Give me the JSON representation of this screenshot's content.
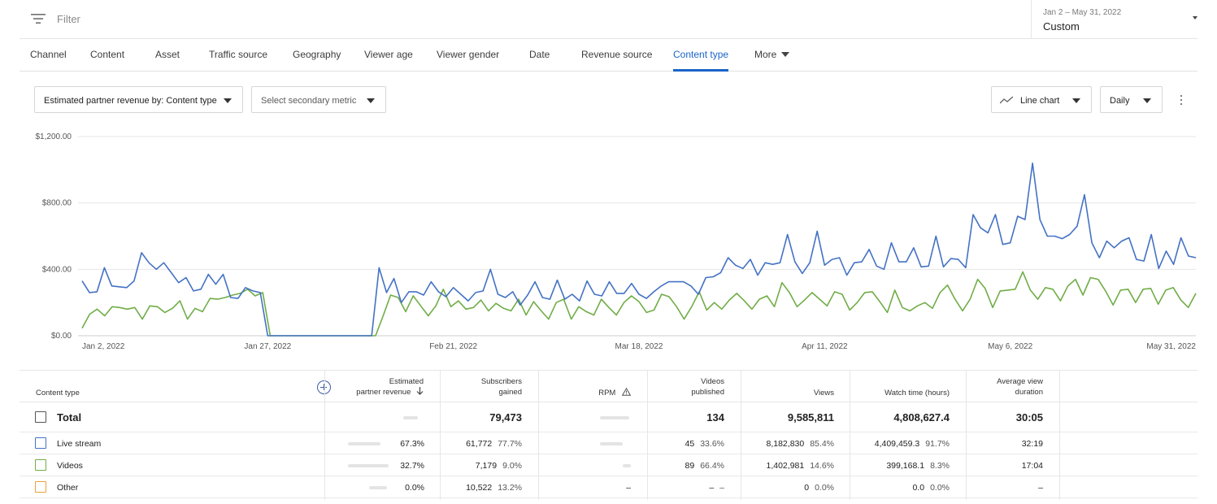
{
  "filter": {
    "label": "Filter"
  },
  "date_range": {
    "range": "Jan 2 – May 31, 2022",
    "preset": "Custom"
  },
  "tabs": [
    "Channel",
    "Content",
    "Asset",
    "Traffic source",
    "Geography",
    "Viewer age",
    "Viewer gender",
    "Date",
    "Revenue source",
    "Content type",
    "More"
  ],
  "active_tab": "Content type",
  "controls": {
    "primary_metric": "Estimated partner revenue by: Content type",
    "secondary_metric": "Select secondary metric",
    "chart_type": "Line chart",
    "granularity": "Daily"
  },
  "colors": {
    "accent": "#1a64c8",
    "live_stream": "#4472c4",
    "videos": "#70ad47",
    "other": "#e8a33d"
  },
  "chart_data": {
    "type": "line",
    "y_ticks": [
      "$0.00",
      "$400.00",
      "$800.00",
      "$1,200.00"
    ],
    "ylim": [
      0,
      1200
    ],
    "x_ticks": [
      "Jan 2, 2022",
      "Jan 27, 2022",
      "Feb 21, 2022",
      "Mar 18, 2022",
      "Apr 11, 2022",
      "May 6, 2022",
      "May 31, 2022"
    ],
    "grid": true,
    "series": [
      {
        "name": "Live stream",
        "color": "#4472c4",
        "values": [
          330,
          260,
          265,
          410,
          300,
          295,
          290,
          330,
          500,
          440,
          400,
          440,
          380,
          320,
          350,
          270,
          280,
          370,
          310,
          370,
          230,
          225,
          290,
          270,
          260,
          0,
          0,
          0,
          0,
          0,
          0,
          0,
          0,
          0,
          0,
          0,
          0,
          0,
          0,
          0,
          410,
          260,
          345,
          200,
          265,
          265,
          245,
          325,
          265,
          235,
          290,
          250,
          210,
          260,
          270,
          400,
          250,
          230,
          265,
          185,
          245,
          325,
          230,
          220,
          335,
          220,
          250,
          210,
          330,
          250,
          240,
          325,
          255,
          255,
          315,
          250,
          225,
          265,
          300,
          325,
          325,
          325,
          300,
          250,
          350,
          355,
          380,
          470,
          425,
          405,
          460,
          365,
          440,
          430,
          440,
          610,
          445,
          375,
          440,
          630,
          425,
          460,
          470,
          365,
          440,
          445,
          520,
          420,
          400,
          560,
          445,
          445,
          530,
          415,
          420,
          600,
          415,
          465,
          460,
          410,
          730,
          650,
          620,
          730,
          550,
          560,
          720,
          700,
          1040,
          700,
          600,
          600,
          585,
          610,
          660,
          850,
          560,
          470,
          570,
          530,
          570,
          590,
          460,
          450,
          610,
          405,
          510,
          430,
          590,
          480,
          470
        ],
        "note": "approximate daily values read from chart"
      },
      {
        "name": "Videos",
        "color": "#70ad47",
        "values": [
          45,
          130,
          160,
          120,
          175,
          170,
          160,
          170,
          100,
          180,
          175,
          140,
          165,
          210,
          100,
          165,
          145,
          225,
          220,
          230,
          245,
          255,
          280,
          240,
          260,
          0,
          0,
          0,
          0,
          0,
          0,
          0,
          0,
          0,
          0,
          0,
          0,
          0,
          0,
          0,
          120,
          245,
          230,
          145,
          240,
          180,
          120,
          180,
          280,
          175,
          210,
          160,
          170,
          215,
          150,
          195,
          165,
          150,
          220,
          125,
          205,
          150,
          100,
          200,
          220,
          100,
          175,
          145,
          125,
          220,
          170,
          125,
          200,
          240,
          205,
          140,
          155,
          250,
          235,
          175,
          100,
          175,
          265,
          155,
          200,
          160,
          215,
          255,
          210,
          160,
          220,
          240,
          175,
          320,
          260,
          175,
          215,
          260,
          220,
          180,
          265,
          250,
          155,
          200,
          260,
          265,
          205,
          140,
          275,
          170,
          150,
          180,
          200,
          165,
          260,
          305,
          220,
          150,
          220,
          340,
          285,
          170,
          270,
          275,
          280,
          385,
          275,
          220,
          290,
          280,
          210,
          300,
          340,
          245,
          350,
          340,
          270,
          185,
          275,
          280,
          200,
          280,
          285,
          190,
          275,
          290,
          215,
          170,
          255
        ],
        "note": "approximate daily values read from chart"
      }
    ]
  },
  "table": {
    "headers": {
      "content_type": "Content type",
      "revenue_l1": "Estimated",
      "revenue_l2": "partner revenue",
      "subs_l1": "Subscribers",
      "subs_l2": "gained",
      "rpm": "RPM",
      "videos_l1": "Videos",
      "videos_l2": "published",
      "views": "Views",
      "watch": "Watch time (hours)",
      "avd_l1": "Average view",
      "avd_l2": "duration"
    },
    "sort_icon": "arrow-down-icon",
    "rpm_icon": "warning-icon",
    "total": {
      "label": "Total",
      "subs": "79,473",
      "videos": "134",
      "views": "9,585,811",
      "watch": "4,808,627.4",
      "avd": "30:05"
    },
    "rows": [
      {
        "label": "Live stream",
        "color": "#4472c4",
        "rev_pct": "67.3%",
        "subs": "61,772",
        "subs_pct": "77.7%",
        "rpm": "",
        "videos": "45",
        "videos_pct": "33.6%",
        "views": "8,182,830",
        "views_pct": "85.4%",
        "watch": "4,409,459.3",
        "watch_pct": "91.7%",
        "avd": "32:19"
      },
      {
        "label": "Videos",
        "color": "#70ad47",
        "rev_pct": "32.7%",
        "subs": "7,179",
        "subs_pct": "9.0%",
        "rpm": "",
        "videos": "89",
        "videos_pct": "66.4%",
        "views": "1,402,981",
        "views_pct": "14.6%",
        "watch": "399,168.1",
        "watch_pct": "8.3%",
        "avd": "17:04"
      },
      {
        "label": "Other",
        "color": "#e8a33d",
        "rev_pct": "0.0%",
        "subs": "10,522",
        "subs_pct": "13.2%",
        "rpm": "–",
        "videos": "–",
        "videos_pct": "–",
        "views": "0",
        "views_pct": "0.0%",
        "watch": "0.0",
        "watch_pct": "0.0%",
        "avd": "–"
      }
    ]
  }
}
